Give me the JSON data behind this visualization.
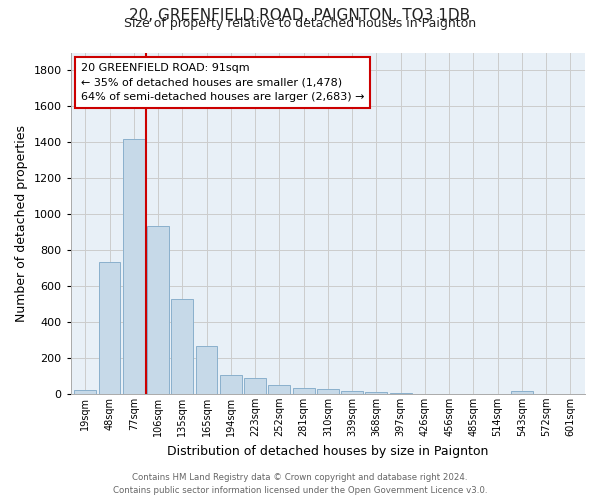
{
  "title": "20, GREENFIELD ROAD, PAIGNTON, TQ3 1DB",
  "subtitle": "Size of property relative to detached houses in Paignton",
  "xlabel": "Distribution of detached houses by size in Paignton",
  "ylabel": "Number of detached properties",
  "bar_labels": [
    "19sqm",
    "48sqm",
    "77sqm",
    "106sqm",
    "135sqm",
    "165sqm",
    "194sqm",
    "223sqm",
    "252sqm",
    "281sqm",
    "310sqm",
    "339sqm",
    "368sqm",
    "397sqm",
    "426sqm",
    "456sqm",
    "485sqm",
    "514sqm",
    "543sqm",
    "572sqm",
    "601sqm"
  ],
  "bar_values": [
    20,
    735,
    1420,
    935,
    530,
    265,
    105,
    90,
    50,
    35,
    25,
    15,
    10,
    5,
    0,
    0,
    0,
    0,
    15,
    0,
    0
  ],
  "bar_color": "#c6d9e8",
  "bar_edge_color": "#8ab0cc",
  "vline_x": 2.5,
  "vline_color": "#cc0000",
  "annotation_title": "20 GREENFIELD ROAD: 91sqm",
  "annotation_line1": "← 35% of detached houses are smaller (1,478)",
  "annotation_line2": "64% of semi-detached houses are larger (2,683) →",
  "annotation_box_color": "#ffffff",
  "annotation_box_edge": "#cc0000",
  "ylim": [
    0,
    1900
  ],
  "yticks": [
    0,
    200,
    400,
    600,
    800,
    1000,
    1200,
    1400,
    1600,
    1800
  ],
  "footer_line1": "Contains HM Land Registry data © Crown copyright and database right 2024.",
  "footer_line2": "Contains public sector information licensed under the Open Government Licence v3.0.",
  "grid_color": "#cccccc",
  "background_color": "#ffffff",
  "plot_bg_color": "#e8f0f7"
}
